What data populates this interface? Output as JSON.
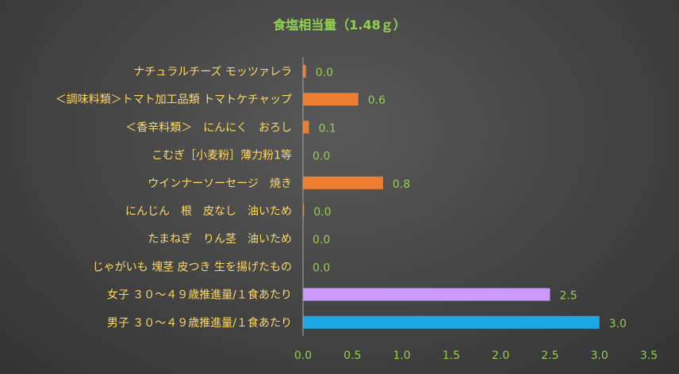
{
  "chart_data": {
    "type": "bar",
    "orientation": "horizontal",
    "title": "食塩相当量（1.48ｇ）",
    "categories": [
      "ナチュラルチーズ モッツァレラ",
      "＜調味料類＞トマト加工品類 トマトケチャップ",
      "＜香辛料類＞　にんにく　おろし",
      "こむぎ［小麦粉］薄力粉1等",
      "ウインナーソーセージ　焼き",
      "にんじん　根　皮なし　油いため",
      "たまねぎ　りん茎　油いため",
      "じゃがいも 塊茎 皮つき 生を揚げたもの",
      "女子 ３０～４９歳推進量/１食あたり",
      "男子 ３０～４９歳推進量/１食あたり"
    ],
    "values": [
      0.03,
      0.56,
      0.06,
      0.0,
      0.81,
      0.01,
      0.0,
      0.0,
      2.5,
      3.0
    ],
    "value_labels": [
      "0.0",
      "0.6",
      "0.1",
      "0.0",
      "0.8",
      "0.0",
      "0.0",
      "0.0",
      "2.5",
      "3.0"
    ],
    "bar_colors": [
      "#ED7D31",
      "#ED7D31",
      "#ED7D31",
      "#ED7D31",
      "#ED7D31",
      "#ED7D31",
      "#ED7D31",
      "#ED7D31",
      "#CC99FF",
      "#1CA8E3"
    ],
    "xlim": [
      0,
      3.5
    ],
    "ticks": [
      "0.0",
      "0.5",
      "1.0",
      "1.5",
      "2.0",
      "2.5",
      "3.0",
      "3.5"
    ],
    "grid": false,
    "colors": {
      "title": "#92D050",
      "category_label": "#FFD966",
      "value_label": "#92D050",
      "tick_label": "#92D050",
      "axis_line": "#A6A6A6"
    }
  }
}
